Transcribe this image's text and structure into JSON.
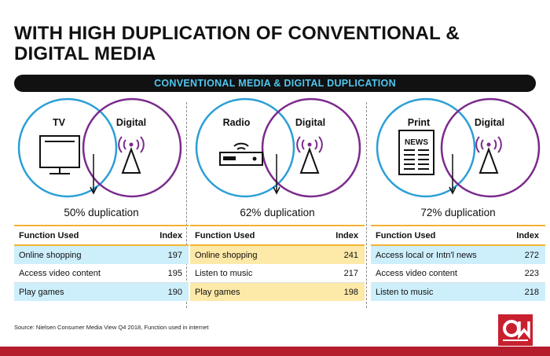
{
  "title": "WITH HIGH DUPLICATION OF CONVENTIONAL & DIGITAL MEDIA",
  "banner": "CONVENTIONAL MEDIA & DIGITAL DUPLICATION",
  "panels": [
    {
      "media_label": "TV",
      "digital_label": "Digital",
      "duplication": "50% duplication",
      "table_header": {
        "function": "Function Used",
        "index": "Index"
      },
      "rows": [
        {
          "function": "Online shopping",
          "index": "197"
        },
        {
          "function": "Access video content",
          "index": "195"
        },
        {
          "function": "Play games",
          "index": "190"
        }
      ]
    },
    {
      "media_label": "Radio",
      "digital_label": "Digital",
      "duplication": "62% duplication",
      "table_header": {
        "function": "Function Used",
        "index": "Index"
      },
      "rows": [
        {
          "function": "Online shopping",
          "index": "241"
        },
        {
          "function": "Listen to music",
          "index": "217"
        },
        {
          "function": "Play games",
          "index": "198"
        }
      ]
    },
    {
      "media_label": "Print",
      "digital_label": "Digital",
      "duplication": "72% duplication",
      "print_icon_text": "NEWS",
      "table_header": {
        "function": "Function Used",
        "index": "Index"
      },
      "rows": [
        {
          "function": "Access local or Intn'l news",
          "index": "272"
        },
        {
          "function": "Access video content",
          "index": "223"
        },
        {
          "function": "Listen to music",
          "index": "218"
        }
      ]
    }
  ],
  "source": "Source: Nielsen Consumer Media View Q4 2018, Function used in internet",
  "colors": {
    "conventional_circle": "#2a9fd6",
    "digital_circle": "#7b2a8c",
    "banner_text": "#4fc6ef",
    "highlight_blue": "#cdeffc",
    "highlight_yellow": "#fde9a8",
    "table_rule": "#f2b233",
    "footer_bar": "#b51c2c"
  }
}
